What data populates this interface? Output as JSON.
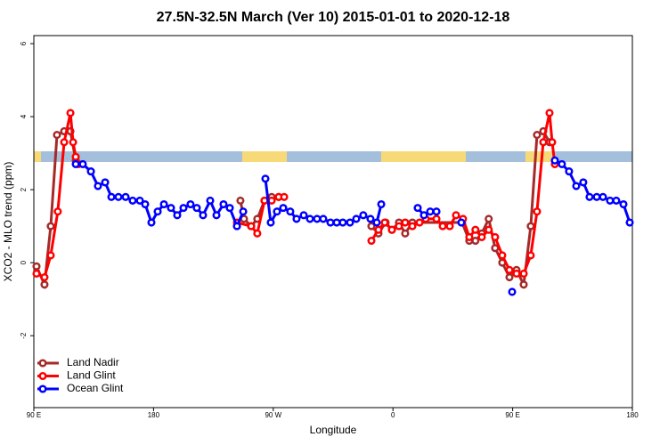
{
  "chart_data": {
    "type": "line",
    "title": "27.5N-32.5N March (Ver 10)   2015-01-01 to 2020-12-18",
    "x_label": "Longitude",
    "y_label": "XCO2 - MLO trend (ppm)",
    "xlim": [
      90,
      540
    ],
    "ylim": [
      -3.97,
      6.22
    ],
    "xticks": [
      {
        "value": 90,
        "label": "90 E"
      },
      180,
      {
        "value": 270,
        "label": "90 W"
      },
      {
        "value": 360,
        "label": "0"
      },
      {
        "value": 450,
        "label": "90 E"
      },
      {
        "value": 540,
        "label": "180"
      }
    ],
    "yticks": [
      -2,
      0,
      2,
      4,
      6
    ],
    "legend": "bottom-left",
    "series": [
      {
        "name": "Land Nadir",
        "color": "#a52a2a",
        "x": [
          92,
          98,
          102.7,
          107.4,
          112.8,
          117.5,
          121.5,
          180,
          245.3,
          248,
          253.4,
          258,
          263.4,
          268.8,
          274.1,
          310,
          343.8,
          349.1,
          354.5,
          359.2,
          364.5,
          369.2,
          374.6,
          412,
          417.4,
          422,
          426.8,
          432,
          436.8,
          442.2,
          447.6,
          452.9,
          458.3,
          463.6,
          468.3,
          473,
          477.7
        ],
        "values": [
          -0.1,
          -0.6,
          1.0,
          3.5,
          3.6,
          3.6,
          2.8,
          null,
          1.7,
          1.2,
          1.0,
          1.2,
          1.7,
          1.8,
          1.8,
          null,
          1.0,
          0.8,
          1.1,
          0.9,
          1.1,
          0.8,
          1.1,
          1.1,
          0.6,
          0.6,
          0.8,
          1.2,
          0.4,
          0.0,
          -0.4,
          -0.2,
          -0.6,
          1.0,
          3.5,
          3.6,
          3.3
        ]
      },
      {
        "name": "Land Glint",
        "color": "#ff0000",
        "x": [
          92,
          98,
          102.7,
          108,
          112.8,
          117.5,
          119.5,
          121.5,
          123.5,
          180,
          242.7,
          253.4,
          258,
          263.4,
          268.8,
          274.1,
          278.2,
          310,
          343.8,
          349.1,
          353.8,
          359.2,
          364.5,
          369.2,
          374.6,
          380,
          384.6,
          392.7,
          397.4,
          402.7,
          407.4,
          412.7,
          417.4,
          422,
          426.8,
          432,
          436.8,
          442.2,
          447.6,
          452.9,
          458.3,
          463.6,
          468.3,
          473,
          477.7,
          479.7,
          481.7
        ],
        "values": [
          -0.3,
          -0.4,
          0.2,
          1.4,
          3.3,
          4.1,
          3.3,
          2.9,
          2.7,
          null,
          1.1,
          1.0,
          0.8,
          1.7,
          1.7,
          1.8,
          1.8,
          null,
          0.6,
          0.9,
          1.1,
          0.9,
          1.0,
          1.1,
          1.0,
          1.1,
          1.2,
          1.2,
          1.0,
          1.0,
          1.3,
          1.2,
          0.7,
          0.9,
          0.7,
          0.9,
          0.7,
          0.2,
          -0.2,
          -0.3,
          -0.3,
          0.2,
          1.4,
          3.3,
          4.1,
          3.3,
          2.7
        ]
      },
      {
        "name": "Ocean Glint",
        "color": "#0000ff",
        "x": [
          121.5,
          126.8,
          132.9,
          138.2,
          143.6,
          148.3,
          153.6,
          159,
          164.3,
          169.7,
          173.7,
          178.4,
          183.1,
          187.8,
          193.1,
          197.8,
          202.5,
          207.8,
          212.5,
          217.2,
          222.6,
          227.3,
          232.6,
          237.3,
          242.7,
          247.4,
          255,
          264.1,
          268.1,
          272.8,
          277.5,
          282.8,
          287.5,
          292.9,
          297.6,
          302.9,
          307.6,
          313,
          317.7,
          322.3,
          327.7,
          332.4,
          337.7,
          343.1,
          347.8,
          351.2,
          365,
          378.6,
          383.3,
          388,
          392.7,
          400,
          411.4,
          430,
          449.6,
          465,
          481.7,
          487,
          492.4,
          497.8,
          503.1,
          507.8,
          513.2,
          517.9,
          523.2,
          527.9,
          533.3,
          538
        ],
        "values": [
          2.7,
          2.7,
          2.5,
          2.1,
          2.2,
          1.8,
          1.8,
          1.8,
          1.7,
          1.7,
          1.6,
          1.1,
          1.4,
          1.6,
          1.5,
          1.3,
          1.5,
          1.6,
          1.5,
          1.3,
          1.7,
          1.3,
          1.6,
          1.5,
          1.0,
          1.4,
          null,
          2.3,
          1.1,
          1.4,
          1.5,
          1.4,
          1.2,
          1.3,
          1.2,
          1.2,
          1.2,
          1.1,
          1.1,
          1.1,
          1.1,
          1.2,
          1.3,
          1.2,
          1.1,
          1.6,
          null,
          1.5,
          1.3,
          1.4,
          1.4,
          null,
          1.1,
          null,
          -0.8,
          null,
          2.8,
          2.7,
          2.5,
          2.1,
          2.2,
          1.8,
          1.8,
          1.8,
          1.7,
          1.7,
          1.6,
          1.1
        ]
      }
    ]
  }
}
